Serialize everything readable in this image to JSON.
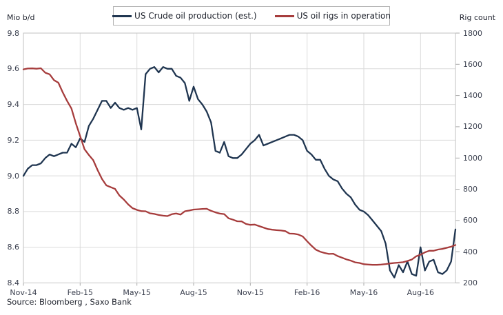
{
  "legend": {
    "items": [
      {
        "label": "US Crude oil production (est.)",
        "color": "#1f3550"
      },
      {
        "label": "US oil rigs in operation",
        "color": "#a63c3c"
      }
    ]
  },
  "source_note": "Source: Bloomberg , Saxo Bank",
  "chart_data": {
    "type": "line",
    "title": "",
    "x_unit": "weekly observations, Nov-2014 to Oct-2016",
    "x_tick_labels": [
      "Nov-14",
      "Feb-15",
      "May-15",
      "Aug-15",
      "Nov-15",
      "Feb-16",
      "May-16",
      "Aug-16"
    ],
    "x_tick_week_indices": [
      0,
      13,
      26,
      39,
      52,
      65,
      78,
      91
    ],
    "grid": true,
    "legend_position": "top-center",
    "left_axis": {
      "title": "Mio b/d",
      "range": [
        8.4,
        9.8
      ],
      "ticks": [
        9.8,
        9.6,
        9.4,
        9.2,
        9.0,
        8.8,
        8.6,
        8.4
      ]
    },
    "right_axis": {
      "title": "Rig count",
      "range": [
        200,
        1800
      ],
      "ticks": [
        1800,
        1600,
        1400,
        1200,
        1000,
        800,
        600,
        400,
        200
      ]
    },
    "series": [
      {
        "name": "US Crude oil production (est.)",
        "axis": "left",
        "color": "#1f3550",
        "values": [
          9.0,
          9.04,
          9.06,
          9.06,
          9.07,
          9.1,
          9.12,
          9.11,
          9.12,
          9.13,
          9.13,
          9.18,
          9.16,
          9.21,
          9.19,
          9.28,
          9.32,
          9.37,
          9.42,
          9.42,
          9.38,
          9.41,
          9.38,
          9.37,
          9.38,
          9.37,
          9.38,
          9.26,
          9.57,
          9.6,
          9.61,
          9.58,
          9.61,
          9.6,
          9.6,
          9.56,
          9.55,
          9.52,
          9.42,
          9.5,
          9.43,
          9.4,
          9.36,
          9.3,
          9.14,
          9.13,
          9.19,
          9.11,
          9.1,
          9.1,
          9.12,
          9.15,
          9.18,
          9.2,
          9.23,
          9.17,
          9.18,
          9.19,
          9.2,
          9.21,
          9.22,
          9.23,
          9.23,
          9.22,
          9.2,
          9.14,
          9.12,
          9.09,
          9.09,
          9.04,
          9.0,
          8.98,
          8.97,
          8.93,
          8.9,
          8.88,
          8.84,
          8.81,
          8.8,
          8.78,
          8.75,
          8.72,
          8.69,
          8.62,
          8.47,
          8.43,
          8.5,
          8.46,
          8.52,
          8.45,
          8.44,
          8.6,
          8.47,
          8.52,
          8.53,
          8.46,
          8.45,
          8.47,
          8.52,
          8.7
        ]
      },
      {
        "name": "US oil rigs in operation",
        "axis": "right",
        "color": "#a63c3c",
        "values": [
          1568,
          1573,
          1574,
          1572,
          1575,
          1546,
          1536,
          1499,
          1482,
          1421,
          1366,
          1317,
          1223,
          1140,
          1056,
          1019,
          986,
          922,
          866,
          825,
          813,
          802,
          760,
          734,
          703,
          679,
          668,
          660,
          659,
          646,
          642,
          635,
          631,
          628,
          640,
          645,
          638,
          659,
          664,
          670,
          672,
          674,
          675,
          662,
          652,
          644,
          641,
          614,
          605,
          595,
          594,
          578,
          572,
          574,
          564,
          555,
          545,
          541,
          538,
          536,
          532,
          516,
          515,
          510,
          498,
          467,
          439,
          413,
          400,
          392,
          386,
          387,
          372,
          362,
          351,
          343,
          332,
          328,
          320,
          318,
          316,
          316,
          318,
          321,
          325,
          328,
          330,
          333,
          341,
          350,
          371,
          381,
          396,
          406,
          406,
          414,
          418,
          425,
          432,
          443
        ]
      }
    ]
  }
}
